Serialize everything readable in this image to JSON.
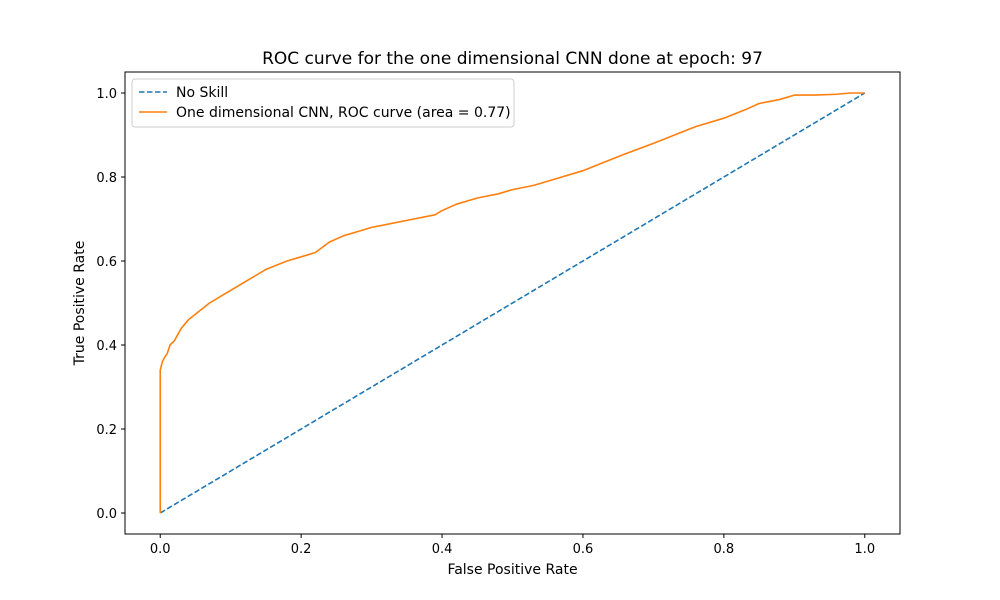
{
  "chart_data": {
    "type": "line",
    "title": "ROC curve for the one dimensional CNN done at epoch: 97",
    "xlabel": "False Positive Rate",
    "ylabel": "True Positive Rate",
    "xlim": [
      -0.05,
      1.05
    ],
    "ylim": [
      -0.05,
      1.05
    ],
    "xticks": [
      0.0,
      0.2,
      0.4,
      0.6,
      0.8,
      1.0
    ],
    "yticks": [
      0.0,
      0.2,
      0.4,
      0.6,
      0.8,
      1.0
    ],
    "tick_labels_x": [
      "0.0",
      "0.2",
      "0.4",
      "0.6",
      "0.8",
      "1.0"
    ],
    "tick_labels_y": [
      "0.0",
      "0.2",
      "0.4",
      "0.6",
      "0.8",
      "1.0"
    ],
    "grid": false,
    "legend_position": "top-left",
    "series": [
      {
        "name": "No Skill",
        "style": "dashed",
        "color": "#1f77b4",
        "x": [
          0,
          1
        ],
        "y": [
          0,
          1
        ]
      },
      {
        "name": "One dimensional CNN, ROC curve (area = 0.77)",
        "style": "solid",
        "color": "#ff7f0e",
        "x": [
          0,
          0,
          0.003,
          0.006,
          0.01,
          0.014,
          0.02,
          0.03,
          0.04,
          0.055,
          0.07,
          0.09,
          0.11,
          0.13,
          0.15,
          0.18,
          0.2,
          0.22,
          0.24,
          0.26,
          0.28,
          0.3,
          0.33,
          0.36,
          0.39,
          0.4,
          0.42,
          0.45,
          0.48,
          0.5,
          0.53,
          0.56,
          0.6,
          0.63,
          0.66,
          0.7,
          0.73,
          0.76,
          0.8,
          0.83,
          0.85,
          0.88,
          0.9,
          0.93,
          0.96,
          0.98,
          1.0
        ],
        "y": [
          0,
          0.34,
          0.36,
          0.37,
          0.38,
          0.4,
          0.41,
          0.44,
          0.46,
          0.48,
          0.5,
          0.52,
          0.54,
          0.56,
          0.58,
          0.6,
          0.61,
          0.62,
          0.645,
          0.66,
          0.67,
          0.68,
          0.69,
          0.7,
          0.71,
          0.72,
          0.735,
          0.75,
          0.76,
          0.77,
          0.78,
          0.795,
          0.815,
          0.835,
          0.855,
          0.88,
          0.9,
          0.92,
          0.94,
          0.96,
          0.975,
          0.985,
          0.995,
          0.995,
          0.997,
          1.0,
          1.0
        ]
      }
    ]
  }
}
